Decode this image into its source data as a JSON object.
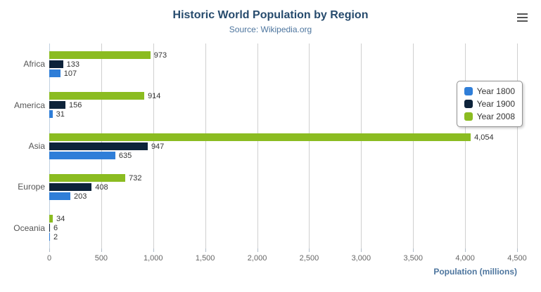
{
  "header": {
    "title": "Historic World Population by Region",
    "subtitle": "Source: Wikipedia.org"
  },
  "menu": {
    "icon": "hamburger-icon"
  },
  "chart_data": {
    "type": "bar",
    "orientation": "horizontal",
    "title": "Historic World Population by Region",
    "subtitle": "Source: Wikipedia.org",
    "categories": [
      "Africa",
      "America",
      "Asia",
      "Europe",
      "Oceania"
    ],
    "series": [
      {
        "name": "Year 1800",
        "color": "#2f7ed8",
        "values": [
          107,
          31,
          635,
          203,
          2
        ]
      },
      {
        "name": "Year 1900",
        "color": "#0d233a",
        "values": [
          133,
          156,
          947,
          408,
          6
        ]
      },
      {
        "name": "Year 2008",
        "color": "#8bbc21",
        "values": [
          973,
          914,
          4054,
          732,
          34
        ]
      }
    ],
    "xlabel": "Population (millions)",
    "ylabel": "",
    "xlim": [
      0,
      4500
    ],
    "x_tick_interval": 500,
    "x_tick_labels": [
      "0",
      "500",
      "1,000",
      "1,500",
      "2,000",
      "2,500",
      "3,000",
      "3,500",
      "4,000",
      "4,500"
    ],
    "grid": true,
    "data_labels": true,
    "legend_position": "right"
  }
}
